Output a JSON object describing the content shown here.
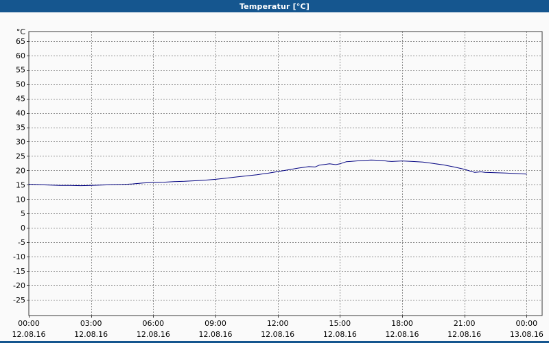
{
  "window": {
    "title": "Temperatur [°C]",
    "titlebar_color": "#15568f",
    "border_color": "#15568f"
  },
  "chart_data": {
    "type": "line",
    "title": "Temperatur [°C]",
    "ylabel": "°C",
    "xlabel": "",
    "background": "#fafafa",
    "grid": "dashed",
    "grid_color": "#8f8f8f",
    "axis_color": "#3a3a3a",
    "legend": "none",
    "ylim": [
      -30.5,
      68.3
    ],
    "yticks": {
      "min": -25,
      "max": 65,
      "step": 5
    },
    "xlim_hours": [
      0,
      24.75
    ],
    "xticks": [
      {
        "hour": 0,
        "time": "00:00",
        "date": "12.08.16"
      },
      {
        "hour": 3,
        "time": "03:00",
        "date": "12.08.16"
      },
      {
        "hour": 6,
        "time": "06:00",
        "date": "12.08.16"
      },
      {
        "hour": 9,
        "time": "09:00",
        "date": "12.08.16"
      },
      {
        "hour": 12,
        "time": "12:00",
        "date": "12.08.16"
      },
      {
        "hour": 15,
        "time": "15:00",
        "date": "12.08.16"
      },
      {
        "hour": 18,
        "time": "18:00",
        "date": "12.08.16"
      },
      {
        "hour": 21,
        "time": "21:00",
        "date": "12.08.16"
      },
      {
        "hour": 24,
        "time": "00:00",
        "date": "13.08.16"
      }
    ],
    "series": [
      {
        "name": "Temperatur",
        "color": "#000080",
        "points": [
          [
            0,
            15.2
          ],
          [
            0.5,
            15.0
          ],
          [
            1,
            14.9
          ],
          [
            1.5,
            14.8
          ],
          [
            2,
            14.8
          ],
          [
            2.5,
            14.7
          ],
          [
            3,
            14.8
          ],
          [
            3.5,
            14.9
          ],
          [
            4,
            15.0
          ],
          [
            4.5,
            15.1
          ],
          [
            5,
            15.3
          ],
          [
            5.5,
            15.6
          ],
          [
            6,
            15.8
          ],
          [
            6.5,
            15.9
          ],
          [
            7,
            16.1
          ],
          [
            7.5,
            16.2
          ],
          [
            8,
            16.4
          ],
          [
            8.5,
            16.6
          ],
          [
            9,
            16.9
          ],
          [
            9.5,
            17.3
          ],
          [
            10,
            17.7
          ],
          [
            10.5,
            18.1
          ],
          [
            11,
            18.5
          ],
          [
            11.5,
            19.0
          ],
          [
            12,
            19.6
          ],
          [
            12.5,
            20.2
          ],
          [
            13,
            20.8
          ],
          [
            13.5,
            21.3
          ],
          [
            13.8,
            21.2
          ],
          [
            14,
            21.8
          ],
          [
            14.3,
            22.1
          ],
          [
            14.5,
            22.3
          ],
          [
            14.8,
            22.0
          ],
          [
            15,
            22.3
          ],
          [
            15.3,
            23.0
          ],
          [
            15.5,
            23.1
          ],
          [
            16,
            23.4
          ],
          [
            16.5,
            23.6
          ],
          [
            17,
            23.5
          ],
          [
            17.3,
            23.2
          ],
          [
            17.5,
            23.1
          ],
          [
            18,
            23.3
          ],
          [
            18.5,
            23.1
          ],
          [
            19,
            22.9
          ],
          [
            19.5,
            22.4
          ],
          [
            20,
            21.9
          ],
          [
            20.5,
            21.2
          ],
          [
            21,
            20.4
          ],
          [
            21.3,
            19.7
          ],
          [
            21.5,
            19.3
          ],
          [
            21.8,
            19.5
          ],
          [
            22,
            19.3
          ],
          [
            22.5,
            19.2
          ],
          [
            23,
            19.1
          ],
          [
            23.5,
            18.9
          ],
          [
            24,
            18.7
          ]
        ]
      }
    ]
  }
}
